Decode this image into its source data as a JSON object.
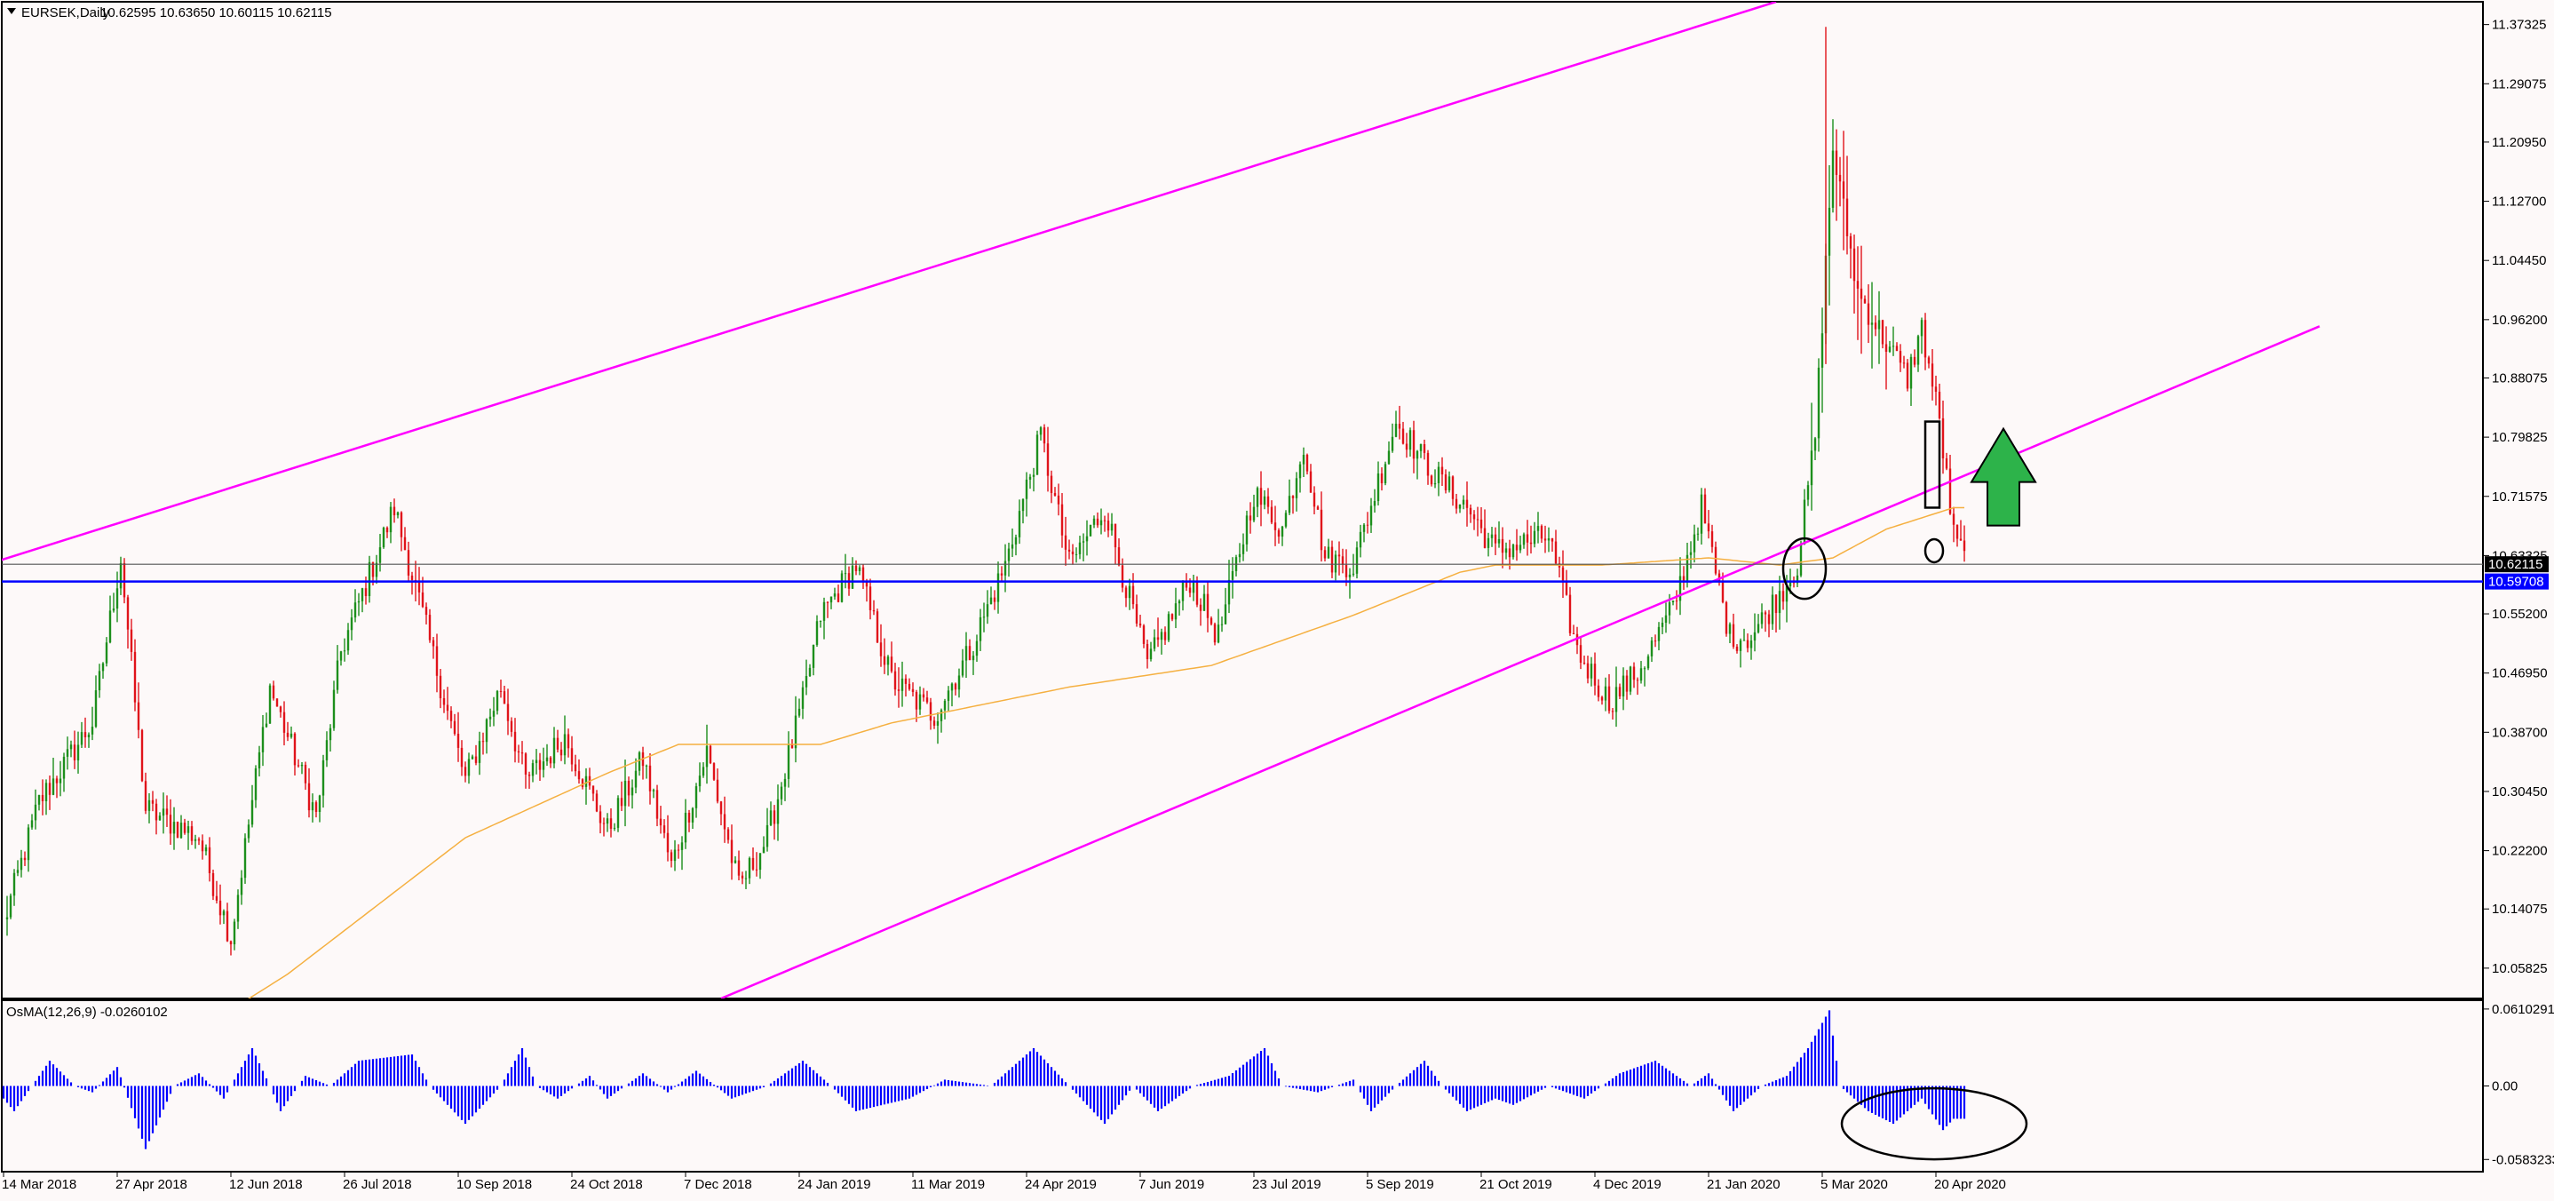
{
  "header": {
    "symbol": "EURSEK,Daily",
    "ohlc": "10.62595 10.63650 10.60115 10.62115"
  },
  "indicator": {
    "label": "OsMA(12,26,9) -0.0260102"
  },
  "colors": {
    "background": "#fdf9f9",
    "bull": "#1d8f1d",
    "bear": "#e0141b",
    "channel": "#ff00ff",
    "ma": "#f5b041",
    "support": "#0000ff",
    "price_line": "#555555",
    "osma": "#0000ff",
    "arrow_fill": "#2db34a",
    "label_bg_price": "#000000",
    "label_bg_support": "#0000ff"
  },
  "chart_data": [
    {
      "type": "candlestick",
      "name": "EURSEK,Daily",
      "y_ticks": [
        "11.37325",
        "11.29075",
        "11.20950",
        "11.12700",
        "11.04450",
        "10.96200",
        "10.88075",
        "10.79825",
        "10.71575",
        "10.63325",
        "10.55200",
        "10.46950",
        "10.38700",
        "10.30450",
        "10.22200",
        "10.14075",
        "10.05825"
      ],
      "ylim": [
        10.016,
        11.405
      ],
      "x_ticks": [
        "14 Mar 2018",
        "27 Apr 2018",
        "12 Jun 2018",
        "26 Jul 2018",
        "10 Sep 2018",
        "24 Oct 2018",
        "7 Dec 2018",
        "24 Jan 2019",
        "11 Mar 2019",
        "24 Apr 2019",
        "7 Jun 2019",
        "23 Jul 2019",
        "5 Sep 2019",
        "21 Oct 2019",
        "4 Dec 2019",
        "21 Jan 2020",
        "5 Mar 2020",
        "20 Apr 2020"
      ],
      "x_tick_index": [
        0,
        32,
        64,
        96,
        128,
        160,
        192,
        224,
        256,
        288,
        320,
        352,
        384,
        416,
        448,
        480,
        512,
        544
      ],
      "bar_count": 553,
      "close_anchors": [
        [
          0,
          10.12
        ],
        [
          10,
          10.29
        ],
        [
          25,
          10.4
        ],
        [
          33,
          10.63
        ],
        [
          40,
          10.28
        ],
        [
          55,
          10.24
        ],
        [
          64,
          10.1
        ],
        [
          75,
          10.45
        ],
        [
          88,
          10.27
        ],
        [
          95,
          10.5
        ],
        [
          110,
          10.7
        ],
        [
          118,
          10.55
        ],
        [
          130,
          10.32
        ],
        [
          140,
          10.45
        ],
        [
          147,
          10.32
        ],
        [
          158,
          10.38
        ],
        [
          170,
          10.25
        ],
        [
          180,
          10.35
        ],
        [
          188,
          10.2
        ],
        [
          198,
          10.36
        ],
        [
          207,
          10.17
        ],
        [
          215,
          10.24
        ],
        [
          225,
          10.43
        ],
        [
          230,
          10.55
        ],
        [
          240,
          10.62
        ],
        [
          250,
          10.46
        ],
        [
          262,
          10.41
        ],
        [
          272,
          10.5
        ],
        [
          282,
          10.62
        ],
        [
          292,
          10.8
        ],
        [
          300,
          10.62
        ],
        [
          310,
          10.7
        ],
        [
          322,
          10.48
        ],
        [
          334,
          10.6
        ],
        [
          342,
          10.52
        ],
        [
          352,
          10.72
        ],
        [
          360,
          10.67
        ],
        [
          366,
          10.79
        ],
        [
          372,
          10.63
        ],
        [
          380,
          10.62
        ],
        [
          392,
          10.82
        ],
        [
          402,
          10.75
        ],
        [
          412,
          10.7
        ],
        [
          420,
          10.64
        ],
        [
          435,
          10.66
        ],
        [
          443,
          10.5
        ],
        [
          452,
          10.43
        ],
        [
          460,
          10.47
        ],
        [
          470,
          10.56
        ],
        [
          478,
          10.7
        ],
        [
          486,
          10.52
        ],
        [
          492,
          10.52
        ],
        [
          500,
          10.58
        ],
        [
          505,
          10.62
        ],
        [
          510,
          10.8
        ],
        [
          515,
          11.2
        ],
        [
          522,
          11.0
        ],
        [
          530,
          10.93
        ],
        [
          536,
          10.88
        ],
        [
          540,
          10.95
        ],
        [
          545,
          10.82
        ],
        [
          549,
          10.66
        ],
        [
          553,
          10.62
        ]
      ],
      "series": [
        {
          "name": "moving average",
          "anchors": [
            [
              0,
              9.8
            ],
            [
              80,
              10.05
            ],
            [
              130,
              10.24
            ],
            [
              170,
              10.33
            ],
            [
              190,
              10.37
            ],
            [
              230,
              10.37
            ],
            [
              250,
              10.4
            ],
            [
              270,
              10.42
            ],
            [
              300,
              10.45
            ],
            [
              340,
              10.48
            ],
            [
              380,
              10.55
            ],
            [
              410,
              10.61
            ],
            [
              420,
              10.62
            ],
            [
              450,
              10.62
            ],
            [
              480,
              10.63
            ],
            [
              500,
              10.62
            ],
            [
              515,
              10.63
            ],
            [
              530,
              10.67
            ],
            [
              549,
              10.7
            ]
          ]
        },
        {
          "name": "channel upper",
          "points": [
            [
              -2,
              10.625
            ],
            [
              499,
              11.405
            ]
          ]
        },
        {
          "name": "channel lower",
          "points": [
            [
              202,
              10.016
            ],
            [
              545,
              10.73
            ]
          ]
        }
      ],
      "horizontal_lines": [
        {
          "name": "current price",
          "value": 10.62115,
          "label": "10.62115"
        },
        {
          "name": "support",
          "value": 10.59708,
          "label": "10.59708"
        }
      ],
      "annotations": [
        {
          "type": "ellipse",
          "at_index": 507,
          "value": 10.615
        },
        {
          "type": "rectangle",
          "from_index": 541,
          "to_index": 545,
          "from_value": 10.7,
          "to_value": 10.82
        },
        {
          "type": "ellipse",
          "at_index": 543,
          "value": 10.64
        },
        {
          "type": "arrow-up",
          "at_index": 572,
          "from_value": 10.675,
          "to_value": 10.81
        }
      ]
    },
    {
      "type": "histogram",
      "name": "OsMA(12,26,9)",
      "y_ticks": [
        "0.0610291",
        "0.00",
        "-0.0583233"
      ],
      "ylim": [
        -0.068,
        0.068
      ],
      "last_value": -0.0260102,
      "anchors": [
        [
          0,
          -0.01
        ],
        [
          3,
          -0.02
        ],
        [
          8,
          0.0
        ],
        [
          13,
          0.02
        ],
        [
          20,
          0.0
        ],
        [
          25,
          -0.005
        ],
        [
          32,
          0.015
        ],
        [
          40,
          -0.05
        ],
        [
          48,
          0.0
        ],
        [
          55,
          0.01
        ],
        [
          62,
          -0.01
        ],
        [
          70,
          0.03
        ],
        [
          75,
          0.0
        ],
        [
          78,
          -0.02
        ],
        [
          85,
          0.008
        ],
        [
          92,
          0.0
        ],
        [
          100,
          0.02
        ],
        [
          115,
          0.025
        ],
        [
          120,
          0.0
        ],
        [
          130,
          -0.03
        ],
        [
          140,
          0.0
        ],
        [
          146,
          0.03
        ],
        [
          150,
          0.0
        ],
        [
          156,
          -0.01
        ],
        [
          165,
          0.008
        ],
        [
          170,
          -0.01
        ],
        [
          180,
          0.01
        ],
        [
          187,
          -0.005
        ],
        [
          195,
          0.012
        ],
        [
          205,
          -0.01
        ],
        [
          215,
          0.0
        ],
        [
          225,
          0.02
        ],
        [
          233,
          0.0
        ],
        [
          240,
          -0.02
        ],
        [
          255,
          -0.01
        ],
        [
          265,
          0.005
        ],
        [
          278,
          0.0
        ],
        [
          290,
          0.03
        ],
        [
          300,
          0.0
        ],
        [
          310,
          -0.03
        ],
        [
          318,
          0.0
        ],
        [
          325,
          -0.02
        ],
        [
          335,
          0.0
        ],
        [
          345,
          0.008
        ],
        [
          355,
          0.03
        ],
        [
          360,
          0.0
        ],
        [
          370,
          -0.005
        ],
        [
          380,
          0.005
        ],
        [
          385,
          -0.02
        ],
        [
          392,
          0.0
        ],
        [
          400,
          0.02
        ],
        [
          405,
          0.0
        ],
        [
          412,
          -0.02
        ],
        [
          420,
          -0.01
        ],
        [
          425,
          -0.015
        ],
        [
          435,
          0.0
        ],
        [
          445,
          -0.01
        ],
        [
          455,
          0.01
        ],
        [
          465,
          0.02
        ],
        [
          475,
          0.0
        ],
        [
          480,
          0.01
        ],
        [
          487,
          -0.02
        ],
        [
          495,
          0.0
        ],
        [
          502,
          0.008
        ],
        [
          508,
          0.03
        ],
        [
          514,
          0.06
        ],
        [
          517,
          0.0
        ],
        [
          525,
          -0.02
        ],
        [
          532,
          -0.03
        ],
        [
          540,
          -0.01
        ],
        [
          546,
          -0.035
        ],
        [
          549,
          -0.026
        ]
      ]
    }
  ]
}
